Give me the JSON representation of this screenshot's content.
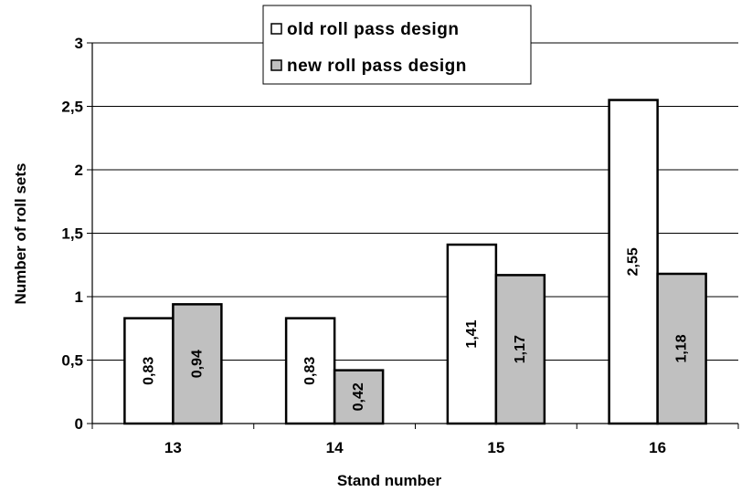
{
  "chart_data": {
    "type": "bar",
    "categories": [
      "13",
      "14",
      "15",
      "16"
    ],
    "series": [
      {
        "name": "old roll pass design",
        "values": [
          0.83,
          0.83,
          1.41,
          2.55
        ],
        "labels": [
          "0,83",
          "0,83",
          "1,41",
          "2,55"
        ],
        "color": "#ffffff"
      },
      {
        "name": "new roll pass design",
        "values": [
          0.94,
          0.42,
          1.17,
          1.18
        ],
        "labels": [
          "0,94",
          "0,42",
          "1,17",
          "1,18"
        ],
        "color": "#c0c0c0"
      }
    ],
    "xlabel": "Stand number",
    "ylabel": "Number of roll sets",
    "ylim": [
      0,
      3
    ],
    "yticks": [
      0,
      0.5,
      1,
      1.5,
      2,
      2.5,
      3
    ],
    "ytick_labels": [
      "0",
      "0,5",
      "1",
      "1,5",
      "2",
      "2,5",
      "3"
    ],
    "grid": true,
    "legend_position": "top-center"
  }
}
